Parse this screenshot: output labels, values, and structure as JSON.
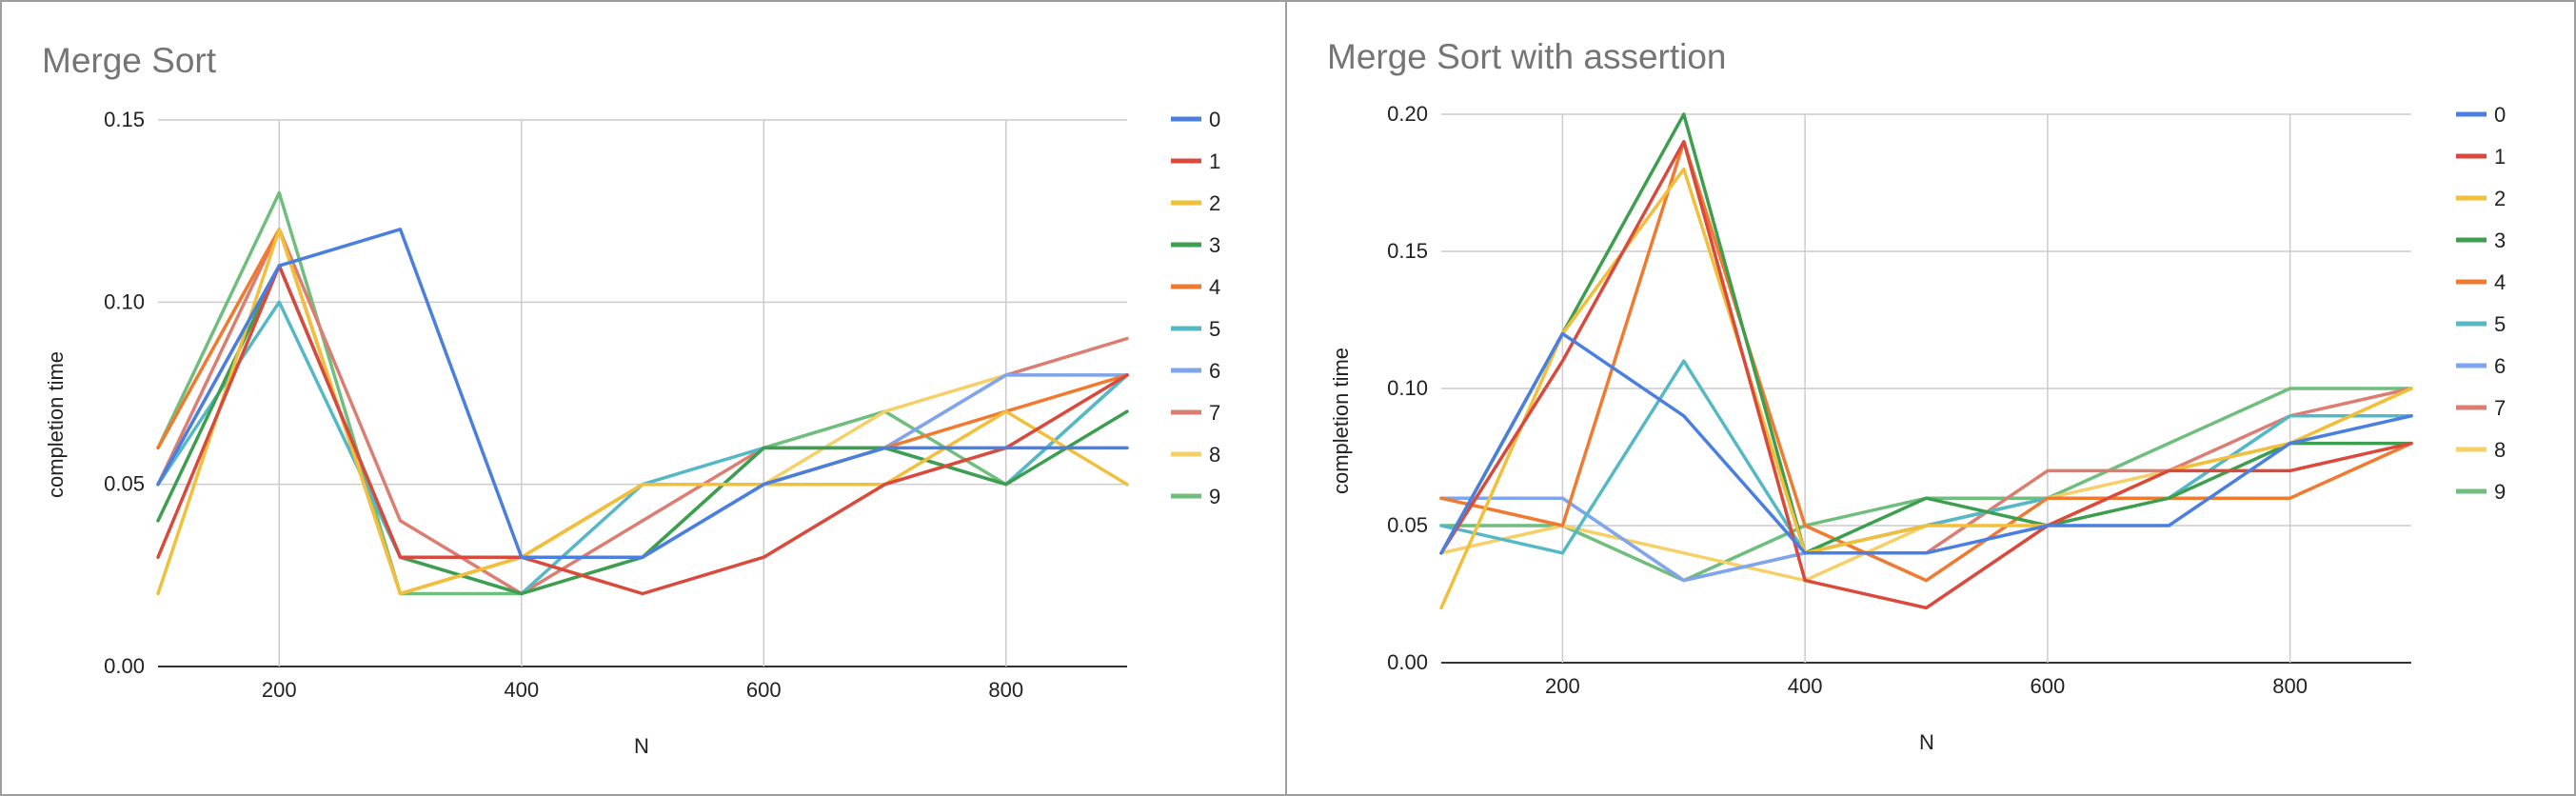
{
  "chart_data": [
    {
      "type": "line",
      "title": "Merge Sort",
      "xlabel": "N",
      "ylabel": "completion time",
      "xlim": [
        100,
        900
      ],
      "ylim": [
        0,
        0.15
      ],
      "x_ticks": [
        200,
        400,
        600,
        800
      ],
      "y_ticks": [
        "0.00",
        "0.05",
        "0.10",
        "0.15"
      ],
      "y_tick_values": [
        0,
        0.05,
        0.1,
        0.15
      ],
      "grid": true,
      "legend_position": "right",
      "x": [
        100,
        200,
        300,
        400,
        500,
        600,
        700,
        800,
        900
      ],
      "series": [
        {
          "name": "0",
          "color": "#4a7fe0",
          "values": [
            0.05,
            0.11,
            0.12,
            0.03,
            0.03,
            0.05,
            0.06,
            0.06,
            0.06
          ]
        },
        {
          "name": "1",
          "color": "#d94a3d",
          "values": [
            0.03,
            0.11,
            0.03,
            0.03,
            0.02,
            0.03,
            0.05,
            0.06,
            0.08
          ]
        },
        {
          "name": "2",
          "color": "#f2bf3a",
          "values": [
            0.02,
            0.12,
            0.02,
            0.03,
            0.05,
            0.05,
            0.05,
            0.07,
            0.05
          ]
        },
        {
          "name": "3",
          "color": "#3e9e4f",
          "values": [
            0.04,
            0.11,
            0.03,
            0.02,
            0.03,
            0.06,
            0.06,
            0.05,
            0.07
          ]
        },
        {
          "name": "4",
          "color": "#f07a30",
          "values": [
            0.06,
            0.12,
            0.02,
            0.03,
            0.05,
            0.05,
            0.06,
            0.07,
            0.08
          ]
        },
        {
          "name": "5",
          "color": "#55b8c6",
          "values": [
            0.05,
            0.1,
            0.03,
            0.02,
            0.05,
            0.06,
            0.06,
            0.05,
            0.08
          ]
        },
        {
          "name": "6",
          "color": "#7ea6ee",
          "values": [
            0.05,
            0.11,
            0.03,
            0.03,
            0.03,
            0.05,
            0.06,
            0.08,
            0.08
          ]
        },
        {
          "name": "7",
          "color": "#dc7d72",
          "values": [
            0.05,
            0.12,
            0.04,
            0.02,
            0.04,
            0.06,
            0.06,
            0.08,
            0.09
          ]
        },
        {
          "name": "8",
          "color": "#f6d067",
          "values": [
            0.06,
            0.12,
            0.02,
            0.03,
            0.05,
            0.05,
            0.07,
            0.08,
            0.08
          ]
        },
        {
          "name": "9",
          "color": "#6fbe7d",
          "values": [
            0.06,
            0.13,
            0.02,
            0.02,
            0.03,
            0.06,
            0.07,
            0.05,
            0.08
          ]
        }
      ]
    },
    {
      "type": "line",
      "title": "Merge Sort with assertion",
      "xlabel": "N",
      "ylabel": "completion time",
      "xlim": [
        100,
        900
      ],
      "ylim": [
        0,
        0.2
      ],
      "x_ticks": [
        200,
        400,
        600,
        800
      ],
      "y_ticks": [
        "0.00",
        "0.05",
        "0.10",
        "0.15",
        "0.20"
      ],
      "y_tick_values": [
        0,
        0.05,
        0.1,
        0.15,
        0.2
      ],
      "grid": true,
      "legend_position": "right",
      "x": [
        100,
        200,
        300,
        400,
        500,
        600,
        700,
        800,
        900
      ],
      "series": [
        {
          "name": "0",
          "color": "#4a7fe0",
          "values": [
            0.04,
            0.12,
            0.09,
            0.04,
            0.04,
            0.05,
            0.05,
            0.08,
            0.09
          ]
        },
        {
          "name": "1",
          "color": "#d94a3d",
          "values": [
            0.04,
            0.11,
            0.19,
            0.03,
            0.02,
            0.05,
            0.07,
            0.07,
            0.08
          ]
        },
        {
          "name": "2",
          "color": "#f2bf3a",
          "values": [
            0.02,
            0.12,
            0.18,
            0.04,
            0.05,
            0.05,
            0.07,
            0.08,
            0.1
          ]
        },
        {
          "name": "3",
          "color": "#3e9e4f",
          "values": [
            0.04,
            0.12,
            0.2,
            0.04,
            0.06,
            0.05,
            0.06,
            0.08,
            0.08
          ]
        },
        {
          "name": "4",
          "color": "#f07a30",
          "values": [
            0.06,
            0.05,
            0.19,
            0.05,
            0.03,
            0.06,
            0.06,
            0.06,
            0.08
          ]
        },
        {
          "name": "5",
          "color": "#55b8c6",
          "values": [
            0.05,
            0.04,
            0.11,
            0.04,
            0.05,
            0.06,
            0.06,
            0.09,
            0.09
          ]
        },
        {
          "name": "6",
          "color": "#7ea6ee",
          "values": [
            0.06,
            0.06,
            0.03,
            0.04,
            0.05,
            0.06,
            0.06,
            0.09,
            0.09
          ]
        },
        {
          "name": "7",
          "color": "#dc7d72",
          "values": [
            0.06,
            0.06,
            0.03,
            0.04,
            0.04,
            0.07,
            0.07,
            0.09,
            0.1
          ]
        },
        {
          "name": "8",
          "color": "#f6d067",
          "values": [
            0.04,
            0.05,
            0.04,
            0.03,
            0.05,
            0.06,
            0.07,
            0.08,
            0.1
          ]
        },
        {
          "name": "9",
          "color": "#6fbe7d",
          "values": [
            0.05,
            0.05,
            0.03,
            0.05,
            0.06,
            0.06,
            0.08,
            0.1,
            0.1
          ]
        }
      ]
    }
  ]
}
